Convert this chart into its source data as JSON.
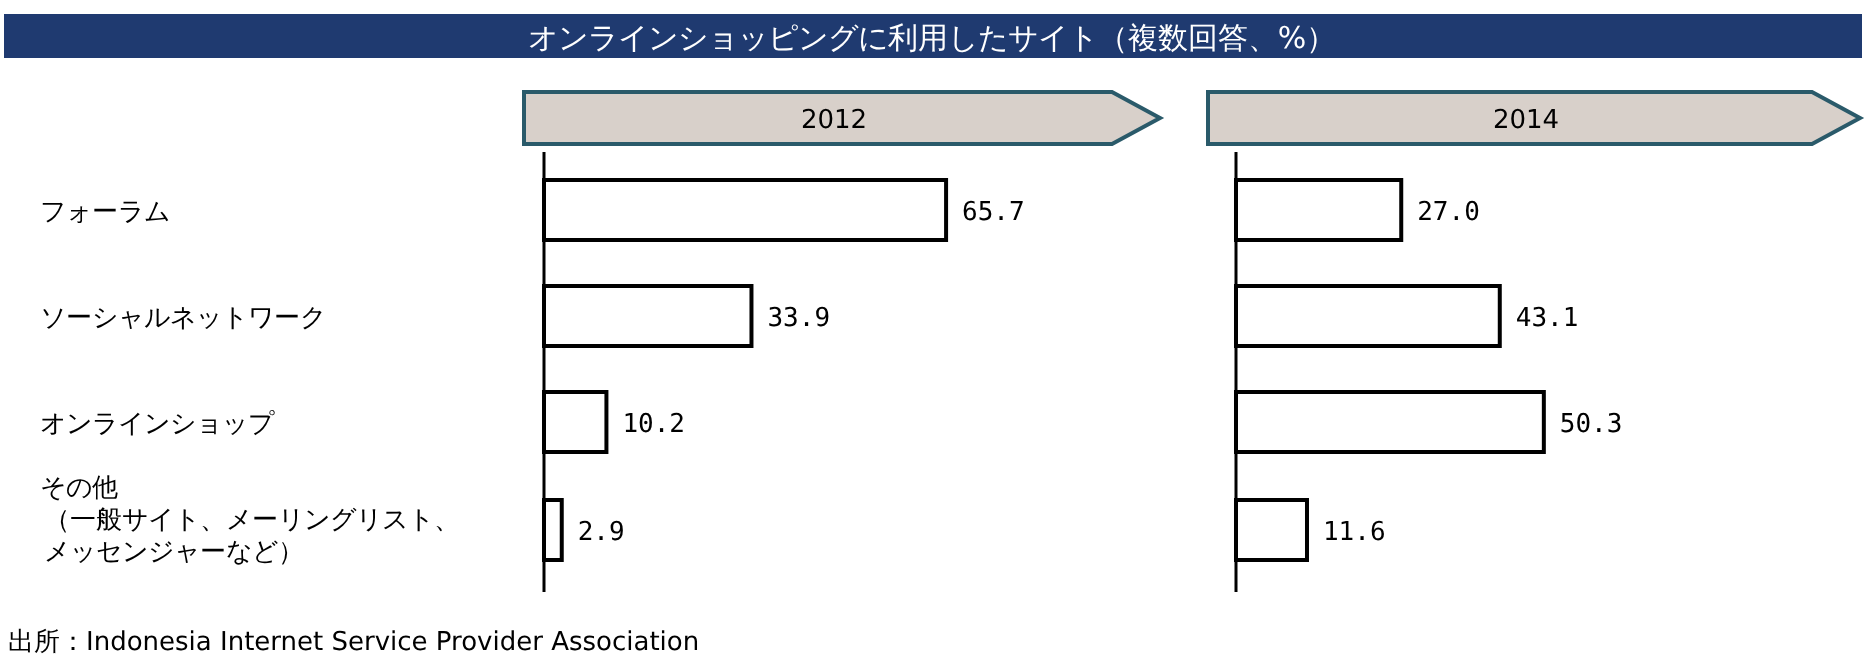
{
  "chart_data": [
    {
      "type": "bar",
      "orientation": "horizontal",
      "title": "オンラインショッピングに利用したサイト（複数回答、%）",
      "subtitle": "2012",
      "categories": [
        "フォーラム",
        "ソーシャルネットワーク",
        "オンラインショップ",
        "その他（一般サイト、メーリングリスト、メッセンジャーなど）"
      ],
      "values": [
        65.7,
        33.9,
        10.2,
        2.9
      ],
      "value_labels": [
        "65.7",
        "33.9",
        "10.2",
        "2.9"
      ],
      "color": "#ffffff",
      "annotations": [
        "出所：Indonesia Internet Service Provider Association"
      ]
    },
    {
      "type": "bar",
      "orientation": "horizontal",
      "subtitle": "2014",
      "categories": [
        null,
        null,
        null,
        null
      ],
      "values": [
        27.0,
        43.1,
        50.3,
        11.6
      ],
      "value_labels": [
        "27.0",
        "43.1",
        "50.3",
        "11.6"
      ],
      "color": "#ffffff"
    }
  ]
}
